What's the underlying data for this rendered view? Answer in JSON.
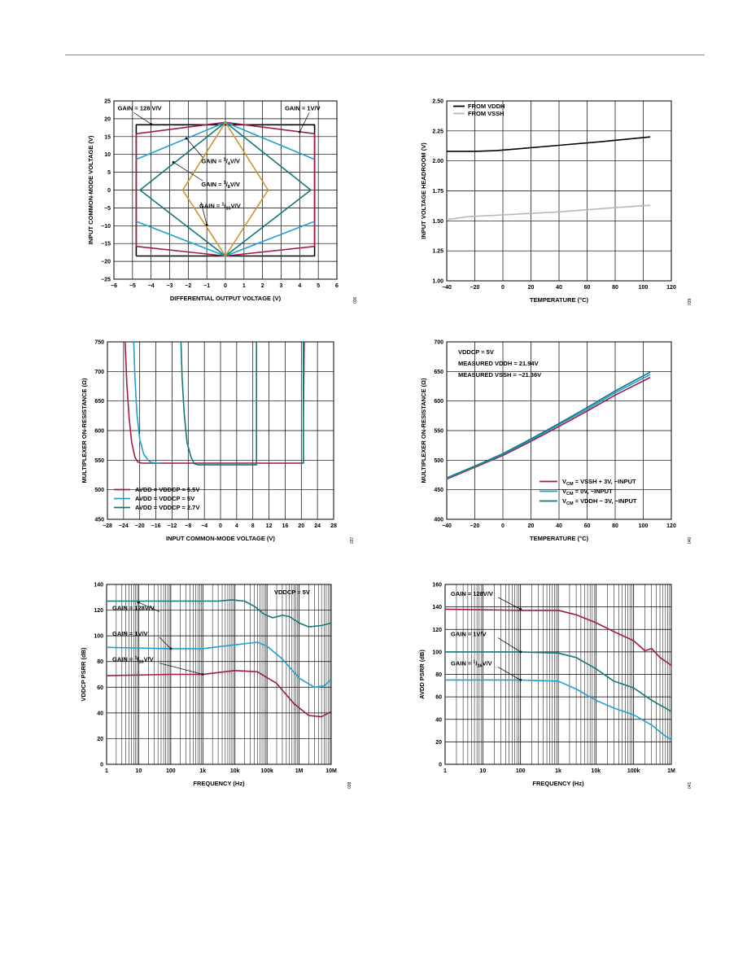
{
  "colors": {
    "maroon": "#a3194b",
    "blue": "#1fa0d2",
    "teal": "#0d7a7a",
    "gold": "#c9962e",
    "black": "#000000",
    "gray": "#b8b8b8"
  },
  "chart_data": [
    {
      "id": "c1",
      "type": "line",
      "figure_code": "036",
      "xlabel": "DIFFERENTIAL OUTPUT VOLTAGE (V)",
      "ylabel": "INPUT COMMON-MODE VOLTAGE (V)",
      "xlim": [
        -6,
        6
      ],
      "ylim": [
        -25,
        25
      ],
      "xticks": [
        -6,
        -5,
        -4,
        -3,
        -2,
        -1,
        0,
        1,
        2,
        3,
        4,
        5,
        6
      ],
      "yticks": [
        -25,
        -20,
        -15,
        -10,
        -5,
        0,
        5,
        10,
        15,
        20,
        25
      ],
      "grid": true,
      "series": [
        {
          "color": "black",
          "points": [
            [
              -4.8,
              -18.5
            ],
            [
              -4.8,
              18.3
            ],
            [
              4.8,
              18.3
            ],
            [
              4.8,
              -18.5
            ],
            [
              -4.8,
              -18.5
            ]
          ]
        },
        {
          "color": "maroon",
          "points": [
            [
              -4.8,
              15.8
            ],
            [
              0,
              19
            ],
            [
              4.8,
              15.8
            ],
            [
              4.8,
              -15.8
            ],
            [
              0,
              -18.5
            ],
            [
              -4.8,
              -15.8
            ],
            [
              -4.8,
              15.8
            ]
          ]
        },
        {
          "color": "blue",
          "points": [
            [
              -4.8,
              8.6
            ],
            [
              0,
              19
            ],
            [
              4.8,
              8.6
            ]
          ]
        },
        {
          "color": "blue",
          "points": [
            [
              -4.8,
              -8.8
            ],
            [
              0,
              -18.5
            ],
            [
              4.8,
              -8.8
            ]
          ]
        },
        {
          "color": "teal",
          "points": [
            [
              0,
              19
            ],
            [
              4.6,
              0
            ],
            [
              0,
              -18.5
            ],
            [
              -4.6,
              0
            ],
            [
              0,
              19
            ]
          ]
        },
        {
          "color": "gold",
          "points": [
            [
              0,
              19
            ],
            [
              2.3,
              0
            ],
            [
              0,
              -18.5
            ],
            [
              -2.3,
              0
            ],
            [
              0,
              19
            ]
          ]
        }
      ],
      "annotations": [
        {
          "text": "GAIN = 128 V/V",
          "x": -5.8,
          "y": 22.4,
          "arrow": [
            -4.0,
            18.5
          ]
        },
        {
          "text": "GAIN = 1V/V",
          "x": 3.2,
          "y": 22.4,
          "arrow": [
            4.0,
            16.3
          ]
        },
        {
          "text": "GAIN = ",
          "num": "1",
          "den": "4",
          "suffix": "V/V",
          "x": -1.3,
          "y": 7.5,
          "arrow": [
            -2.1,
            14.5
          ]
        },
        {
          "text": "GAIN = ",
          "num": "1",
          "den": "8",
          "suffix": "V/V",
          "x": -1.3,
          "y": 1.0,
          "arrow": [
            -2.8,
            7.8
          ]
        },
        {
          "text": "GAIN = ",
          "num": "1",
          "den": "16",
          "suffix": "V/V",
          "x": -1.4,
          "y": -5.0,
          "arrow": [
            -1.0,
            -9.8
          ]
        }
      ]
    },
    {
      "id": "c2",
      "type": "line",
      "figure_code": "039",
      "xlabel": "TEMPERATURE (°C)",
      "ylabel": "INPUT VOLTAGE HEADROOM (V)",
      "xlim": [
        -40,
        120
      ],
      "ylim": [
        1.0,
        2.5
      ],
      "xticks": [
        -40,
        -20,
        0,
        20,
        40,
        60,
        80,
        100,
        120
      ],
      "yticks": [
        "1.00",
        "1.25",
        "1.50",
        "1.75",
        "2.00",
        "2.25",
        "2.50"
      ],
      "grid": true,
      "series": [
        {
          "name": "FROM VDDH",
          "color": "black",
          "points": [
            [
              -40,
              2.08
            ],
            [
              -20,
              2.08
            ],
            [
              -5,
              2.085
            ],
            [
              10,
              2.1
            ],
            [
              40,
              2.13
            ],
            [
              70,
              2.16
            ],
            [
              105,
              2.2
            ]
          ]
        },
        {
          "name": "FROM VSSH",
          "color": "gray",
          "points": [
            [
              -40,
              1.51
            ],
            [
              -25,
              1.535
            ],
            [
              0,
              1.55
            ],
            [
              40,
              1.575
            ],
            [
              80,
              1.61
            ],
            [
              105,
              1.63
            ]
          ]
        }
      ]
    },
    {
      "id": "c3",
      "type": "line",
      "figure_code": "037",
      "xlabel": "INPUT COMMON-MODE VOLTAGE (V)",
      "ylabel": "MULTIPLEXER ON-RESISTANCE (Ω)",
      "xlim": [
        -28,
        28
      ],
      "ylim": [
        450,
        750
      ],
      "xticks": [
        -28,
        -24,
        -20,
        -16,
        -12,
        -8,
        -4,
        0,
        4,
        8,
        12,
        16,
        20,
        24,
        28
      ],
      "yticks": [
        450,
        500,
        550,
        600,
        650,
        700,
        750
      ],
      "ytick_labels": [
        "450",
        "500",
        "550",
        "600",
        "650",
        "700",
        "750"
      ],
      "grid": true,
      "series": [
        {
          "name": "AVDD = VDDCP = 5.5V",
          "color": "maroon",
          "points": [
            [
              -23.6,
              750
            ],
            [
              -23.2,
              680
            ],
            [
              -22.6,
              620
            ],
            [
              -22,
              580
            ],
            [
              -21.2,
              555
            ],
            [
              -20.5,
              547
            ],
            [
              -19.5,
              545
            ],
            [
              20.5,
              545
            ],
            [
              20.5,
              620
            ],
            [
              20.7,
              750
            ]
          ]
        },
        {
          "name": "AVDD = VDDCP = 5V",
          "color": "blue",
          "points": [
            [
              -21.5,
              750
            ],
            [
              -21.2,
              690
            ],
            [
              -20.7,
              630
            ],
            [
              -20,
              585
            ],
            [
              -19,
              560
            ],
            [
              -17.8,
              549
            ],
            [
              -17,
              546
            ],
            [
              -15,
              545
            ]
          ]
        },
        {
          "name": "AVDD = VDDCP = 2.7V",
          "color": "teal",
          "points": [
            [
              -9.8,
              750
            ],
            [
              -9.5,
              690
            ],
            [
              -9,
              630
            ],
            [
              -8.3,
              580
            ],
            [
              -7.3,
              555
            ],
            [
              -6.5,
              544
            ],
            [
              -5.5,
              542
            ],
            [
              8.9,
              542
            ],
            [
              8.9,
              750
            ]
          ]
        },
        {
          "color": "teal",
          "points": [
            [
              20.5,
              750
            ],
            [
              20.5,
              545
            ]
          ]
        }
      ]
    },
    {
      "id": "c4",
      "type": "line",
      "figure_code": "040",
      "xlabel": "TEMPERATURE (°C)",
      "ylabel": "MULTIPLEXER ON-RESISTANCE (Ω)",
      "xlim": [
        -40,
        120
      ],
      "ylim": [
        400,
        700
      ],
      "xticks": [
        -40,
        -20,
        0,
        20,
        40,
        60,
        80,
        100,
        120
      ],
      "yticks": [
        400,
        450,
        500,
        550,
        600,
        650,
        700
      ],
      "grid": true,
      "conditions": [
        "VDDCP = 5V",
        "MEASURED VDDH = 21.94V",
        "MEASURED VSSH = −21.36V"
      ],
      "series": [
        {
          "name": "V",
          "name_sub": "CM",
          "name_suffix": " = VSSH + 3V, −INPUT",
          "color": "maroon",
          "points": [
            [
              -40,
              468
            ],
            [
              -20,
              488
            ],
            [
              0,
              508
            ],
            [
              20,
              532
            ],
            [
              40,
              557
            ],
            [
              60,
              583
            ],
            [
              80,
              610
            ],
            [
              105,
              640
            ]
          ]
        },
        {
          "name": "V",
          "name_sub": "CM",
          "name_suffix": " = 0V, −INPUT",
          "color": "blue",
          "points": [
            [
              -40,
              469
            ],
            [
              -20,
              489
            ],
            [
              0,
              510
            ],
            [
              20,
              534
            ],
            [
              40,
              560
            ],
            [
              60,
              586
            ],
            [
              80,
              614
            ],
            [
              105,
              645
            ]
          ]
        },
        {
          "name": "V",
          "name_sub": "CM",
          "name_suffix": " = VDDH − 3V, −INPUT",
          "color": "teal",
          "points": [
            [
              -40,
              470
            ],
            [
              -20,
              490
            ],
            [
              0,
              511
            ],
            [
              20,
              536
            ],
            [
              40,
              562
            ],
            [
              60,
              589
            ],
            [
              80,
              617
            ],
            [
              105,
              649
            ]
          ]
        }
      ]
    },
    {
      "id": "c5",
      "type": "line",
      "figure_code": "038",
      "xlabel": "FREQUENCY (Hz)",
      "ylabel": "VDDCP PSRR (dB)",
      "xscale": "log",
      "xlim": [
        1,
        10000000
      ],
      "ylim": [
        0,
        140
      ],
      "xtick_labels": [
        "1",
        "10",
        "100",
        "1k",
        "10k",
        "100k",
        "1M",
        "10M"
      ],
      "yticks": [
        0,
        20,
        40,
        60,
        80,
        100,
        120,
        140
      ],
      "grid": true,
      "conditions": [
        "VDDCP = 5V"
      ],
      "series": [
        {
          "name": "GAIN = 128V/V",
          "color": "teal",
          "points": [
            [
              1,
              127
            ],
            [
              100,
              127
            ],
            [
              3000,
              127
            ],
            [
              8000,
              128
            ],
            [
              20000,
              127
            ],
            [
              40000,
              123
            ],
            [
              80000,
              117
            ],
            [
              150000,
              114
            ],
            [
              300000,
              116
            ],
            [
              500000,
              115
            ],
            [
              1000000,
              110
            ],
            [
              2000000,
              107
            ],
            [
              5000000,
              108
            ],
            [
              10000000,
              110
            ]
          ]
        },
        {
          "name": "GAIN = 1V/V",
          "color": "blue",
          "points": [
            [
              1,
              91
            ],
            [
              100,
              90
            ],
            [
              1000,
              90
            ],
            [
              10000,
              93
            ],
            [
              50000,
              95
            ],
            [
              100000,
              92
            ],
            [
              300000,
              82
            ],
            [
              1000000,
              67
            ],
            [
              3000000,
              60
            ],
            [
              6000000,
              61
            ],
            [
              10000000,
              66
            ]
          ]
        },
        {
          "name": "GAIN = ",
          "num": "1",
          "den": "16",
          "suffix": "V/V",
          "color": "maroon",
          "points": [
            [
              1,
              69
            ],
            [
              100,
              70
            ],
            [
              1000,
              70
            ],
            [
              10000,
              73
            ],
            [
              50000,
              72
            ],
            [
              200000,
              63
            ],
            [
              700000,
              47
            ],
            [
              2000000,
              38
            ],
            [
              5000000,
              37
            ],
            [
              10000000,
              41
            ]
          ]
        }
      ],
      "annotations": [
        {
          "text": "GAIN = 128V/V",
          "series": 0
        },
        {
          "text": "GAIN = 1V/V",
          "series": 1
        },
        {
          "text": "GAIN = ",
          "num": "1",
          "den": "16",
          "suffix": "V/V",
          "series": 2
        }
      ]
    },
    {
      "id": "c6",
      "type": "line",
      "figure_code": "041",
      "xlabel": "FREQUENCY (Hz)",
      "ylabel": "AVDD PSRR (dB)",
      "xscale": "log",
      "xlim": [
        1,
        1000000
      ],
      "ylim": [
        0,
        160
      ],
      "xtick_labels": [
        "1",
        "10",
        "100",
        "1k",
        "10k",
        "100k",
        "1M"
      ],
      "yticks": [
        0,
        20,
        40,
        60,
        80,
        100,
        120,
        140,
        160
      ],
      "grid": true,
      "series": [
        {
          "name": "GAIN = 128V/V",
          "color": "maroon",
          "points": [
            [
              1,
              138
            ],
            [
              100,
              137
            ],
            [
              1000,
              137
            ],
            [
              3000,
              133
            ],
            [
              10000,
              126
            ],
            [
              30000,
              118
            ],
            [
              100000,
              110
            ],
            [
              200000,
              101
            ],
            [
              300000,
              103
            ],
            [
              500000,
              95
            ],
            [
              1000000,
              88
            ]
          ]
        },
        {
          "name": "GAIN = 1V/V",
          "color": "teal",
          "points": [
            [
              1,
              100
            ],
            [
              100,
              100
            ],
            [
              1000,
              99
            ],
            [
              3000,
              95
            ],
            [
              10000,
              85
            ],
            [
              30000,
              74
            ],
            [
              100000,
              68
            ],
            [
              300000,
              57
            ],
            [
              1000000,
              47
            ]
          ]
        },
        {
          "name": "GAIN = ",
          "num": "1",
          "den": "16",
          "suffix": "V/V",
          "color": "blue",
          "points": [
            [
              1,
              75
            ],
            [
              100,
              75
            ],
            [
              1000,
              74
            ],
            [
              3000,
              67
            ],
            [
              10000,
              57
            ],
            [
              30000,
              50
            ],
            [
              100000,
              44
            ],
            [
              300000,
              35
            ],
            [
              700000,
              25
            ],
            [
              1000000,
              22
            ]
          ]
        }
      ],
      "annotations": [
        {
          "text": "GAIN = 128V/V",
          "series": 0
        },
        {
          "text": "GAIN = 1V/V",
          "series": 1
        },
        {
          "text": "GAIN = ",
          "num": "1",
          "den": "16",
          "suffix": "V/V",
          "series": 2
        }
      ]
    }
  ]
}
